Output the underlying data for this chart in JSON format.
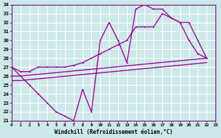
{
  "xlabel": "Windchill (Refroidissement éolien,°C)",
  "xlim": [
    0,
    23
  ],
  "ylim": [
    21,
    34
  ],
  "yticks": [
    21,
    22,
    23,
    24,
    25,
    26,
    27,
    28,
    29,
    30,
    31,
    32,
    33,
    34
  ],
  "xticks": [
    0,
    1,
    2,
    3,
    4,
    5,
    6,
    7,
    8,
    9,
    10,
    11,
    12,
    13,
    14,
    15,
    16,
    17,
    18,
    19,
    20,
    21,
    22,
    23
  ],
  "background_color": "#cce8e8",
  "grid_color": "#ffffff",
  "line_color": "#990099",
  "line1_x": [
    0,
    1,
    2,
    3,
    4,
    5,
    6,
    7,
    8,
    9,
    10,
    11,
    12,
    13,
    14,
    15,
    16,
    17,
    18,
    19,
    20,
    21,
    22
  ],
  "line1_y": [
    27,
    26,
    25,
    24,
    23,
    22,
    21.5,
    21,
    24.5,
    22,
    30,
    32,
    30,
    27.5,
    33.5,
    34,
    33.5,
    33.5,
    32.5,
    32,
    30,
    28.5,
    28
  ],
  "line2_x": [
    0,
    1,
    2,
    3,
    4,
    5,
    6,
    7,
    8,
    9,
    10,
    11,
    12,
    13,
    14,
    15,
    16,
    17,
    18,
    19,
    20,
    21,
    22
  ],
  "line2_y": [
    27,
    26.5,
    26.5,
    27,
    27,
    27,
    27,
    27.2,
    27.5,
    28,
    28.5,
    29,
    29.5,
    30,
    31.5,
    31.5,
    31.5,
    33.0,
    32.5,
    32,
    32,
    30,
    28
  ],
  "line3_x": [
    0,
    1,
    22
  ],
  "line3_y": [
    26,
    26,
    28
  ],
  "line4_x": [
    0,
    1,
    22
  ],
  "line4_y": [
    25.5,
    25.5,
    27.5
  ]
}
